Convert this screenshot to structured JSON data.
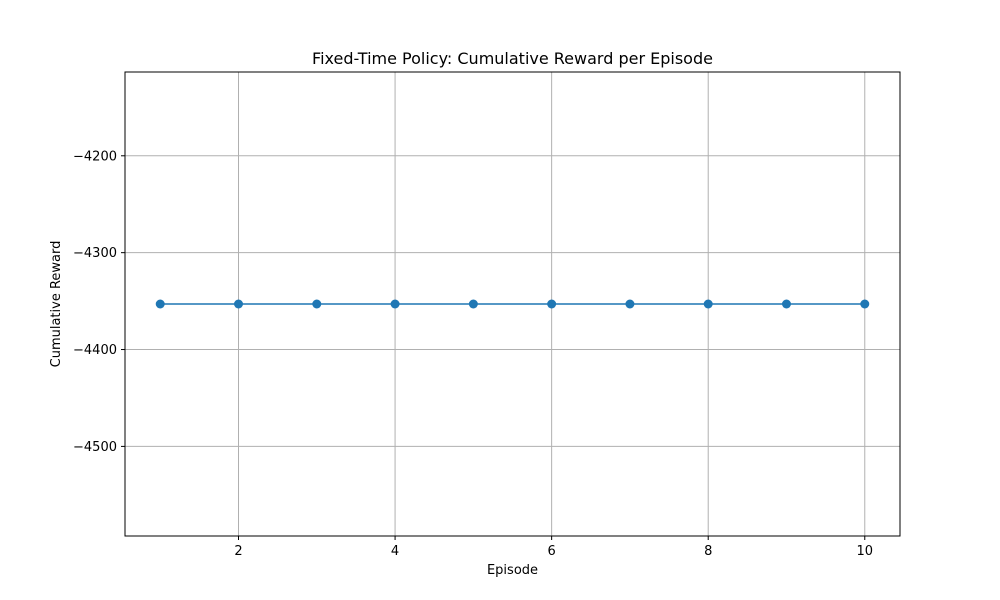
{
  "chart_data": {
    "type": "line",
    "title": "Fixed-Time Policy: Cumulative Reward per Episode",
    "xlabel": "Episode",
    "ylabel": "Cumulative Reward",
    "xlim": [
      0.55,
      10.45
    ],
    "ylim": [
      -4592.5,
      -4113.5
    ],
    "xticks": [
      2,
      4,
      6,
      8,
      10
    ],
    "yticks": [
      -4200,
      -4300,
      -4400,
      -4500
    ],
    "grid": true,
    "series": [
      {
        "color": "#1f77b4",
        "marker": "circle",
        "x": [
          1,
          2,
          3,
          4,
          5,
          6,
          7,
          8,
          9,
          10
        ],
        "y": [
          -4353,
          -4353,
          -4353,
          -4353,
          -4353,
          -4353,
          -4353,
          -4353,
          -4353,
          -4353
        ]
      }
    ]
  }
}
